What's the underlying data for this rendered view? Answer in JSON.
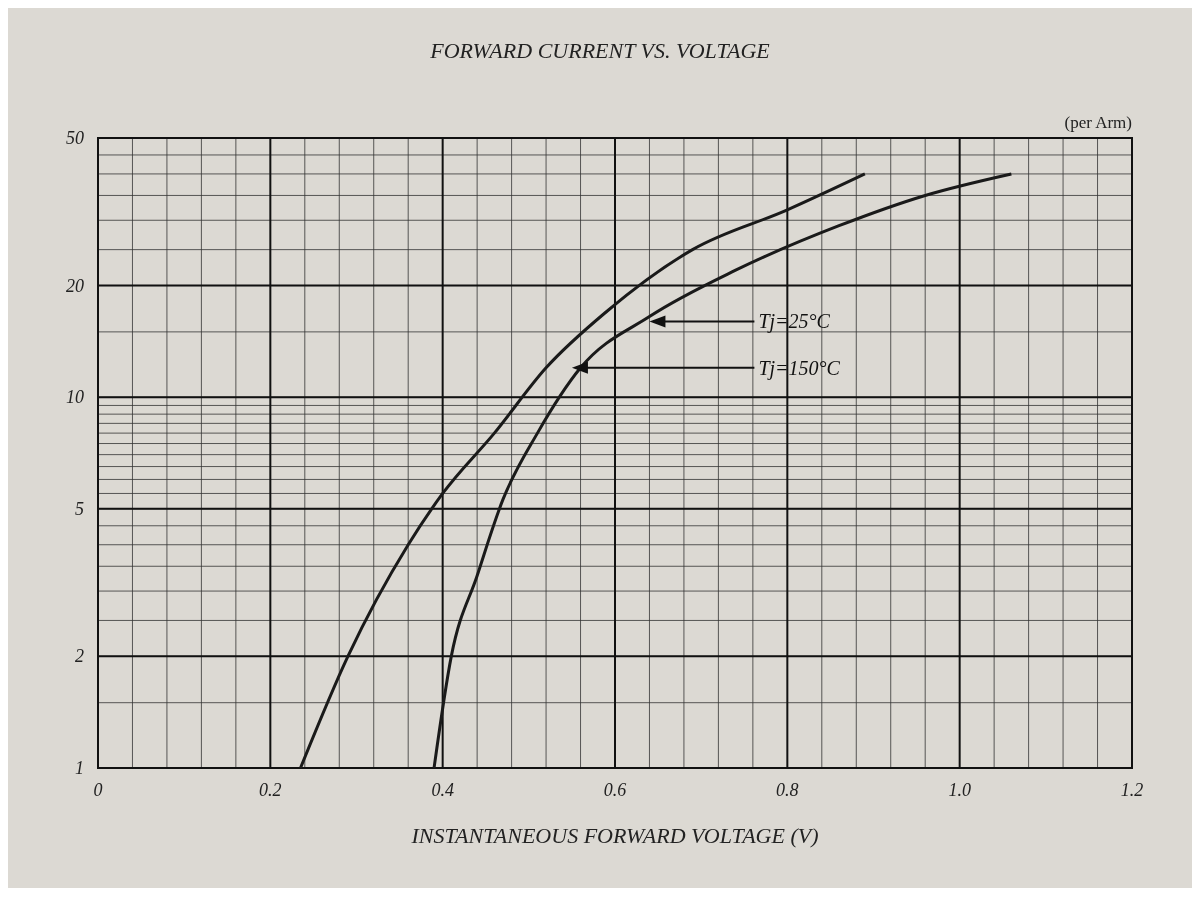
{
  "chart_data": {
    "type": "line",
    "title": "FORWARD CURRENT VS. VOLTAGE",
    "xlabel": "INSTANTANEOUS FORWARD VOLTAGE (V)",
    "log": "y",
    "grid": true,
    "marker": "none",
    "line_style": "solid",
    "xlim": [
      0,
      1.2
    ],
    "xticks": [
      0,
      0.2,
      0.4,
      0.6,
      0.8,
      {
        "value": 1,
        "label": "1.0"
      },
      1.2
    ],
    "ylim": [
      1,
      50
    ],
    "yticks": [
      1,
      2,
      5,
      10,
      20,
      50
    ],
    "series": [
      {
        "color": "#1a1a1a",
        "x": [
          0.235,
          0.29,
          0.36,
          0.4,
          0.46,
          0.52,
          0.59,
          0.69,
          0.8,
          0.89
        ],
        "values": [
          1,
          2,
          4,
          5.5,
          8,
          12,
          17,
          25,
          32,
          40
        ]
      },
      {
        "color": "#1a1a1a",
        "x": [
          0.39,
          0.41,
          0.44,
          0.47,
          0.51,
          0.56,
          0.64,
          0.74,
          0.86,
          0.96,
          1.06
        ],
        "values": [
          1,
          2,
          3.3,
          5.3,
          8,
          12,
          16.5,
          22,
          29,
          35,
          40
        ]
      }
    ],
    "annotations": [
      "(per Arm)",
      {
        "text": "Tj=25°C",
        "x": 0.64,
        "y": 16
      },
      {
        "text": "Tj=150°C",
        "x": 0.55,
        "y": 12
      }
    ]
  }
}
